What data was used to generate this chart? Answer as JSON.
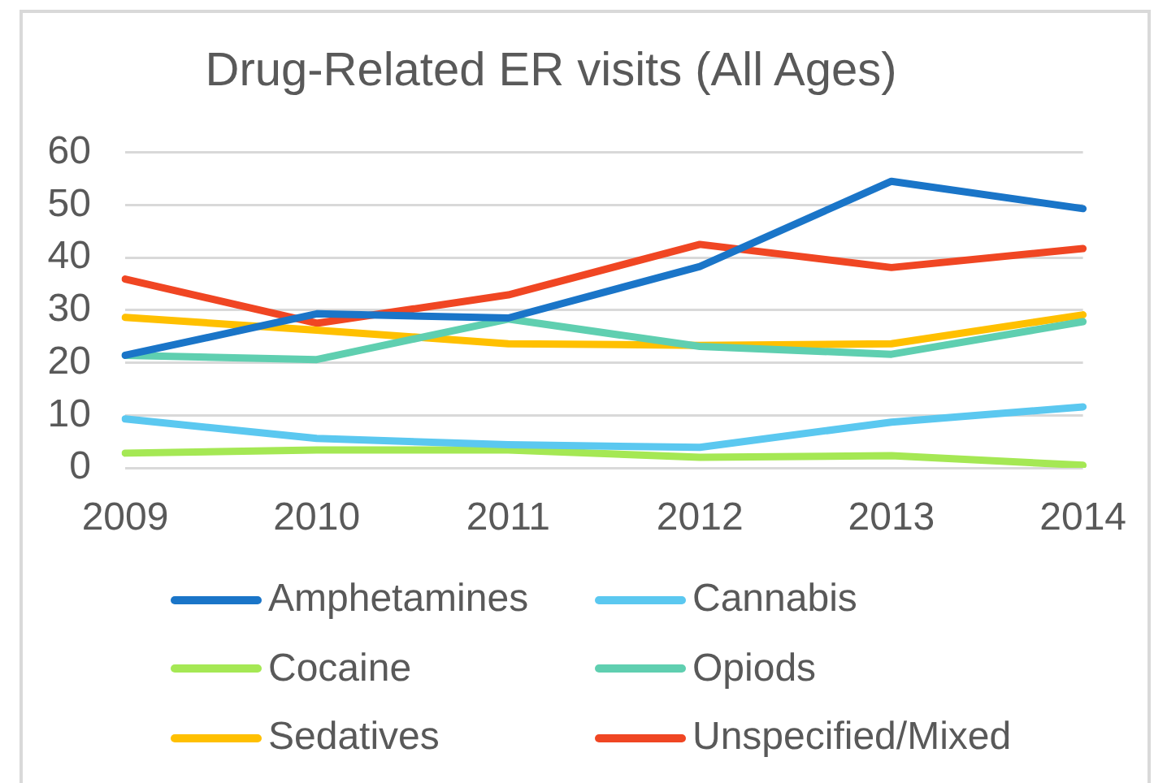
{
  "chart_data": {
    "type": "line",
    "title": "Drug-Related ER visits (All Ages)",
    "categories": [
      "2009",
      "2010",
      "2011",
      "2012",
      "2013",
      "2014"
    ],
    "series": [
      {
        "name": "Amphetamines",
        "color": "#1a75c8",
        "values": [
          21.4,
          29.3,
          28.5,
          38.3,
          54.5,
          49.3
        ]
      },
      {
        "name": "Cannabis",
        "color": "#5bc8f0",
        "values": [
          9.3,
          5.6,
          4.4,
          3.9,
          8.7,
          11.6
        ]
      },
      {
        "name": "Cocaine",
        "color": "#a5e854",
        "values": [
          2.8,
          3.4,
          3.4,
          2.0,
          2.3,
          0.5
        ]
      },
      {
        "name": "Opiods",
        "color": "#5fcfb0",
        "values": [
          21.4,
          20.6,
          28.3,
          23.1,
          21.6,
          27.8
        ]
      },
      {
        "name": "Sedatives",
        "color": "#ffc000",
        "values": [
          28.6,
          26.2,
          23.6,
          23.3,
          23.6,
          29.1
        ]
      },
      {
        "name": "Unspecified/Mixed",
        "color": "#f04623",
        "values": [
          35.9,
          27.5,
          32.9,
          42.5,
          38.1,
          41.7
        ]
      }
    ],
    "ylim": [
      0,
      60
    ],
    "yticks": [
      0,
      10,
      20,
      30,
      40,
      50,
      60
    ],
    "grid": "y",
    "legend": "bottom",
    "marker": "none",
    "line_style": "solid"
  }
}
